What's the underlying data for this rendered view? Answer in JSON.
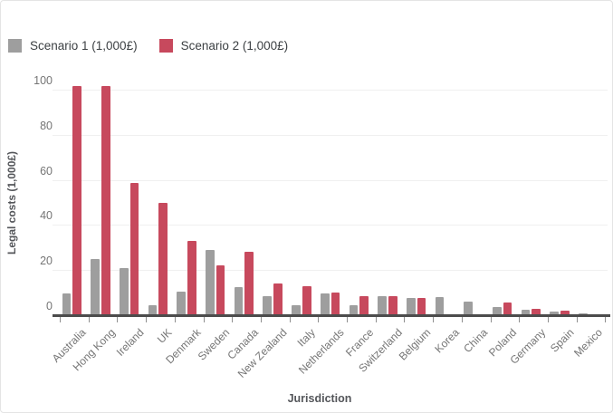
{
  "legend": {
    "items": [
      {
        "label": "Scenario 1 (1,000£)",
        "color": "#9e9e9e"
      },
      {
        "label": "Scenario 2 (1,000£)",
        "color": "#c7495d"
      }
    ],
    "position": "top-left"
  },
  "chart_data": {
    "type": "bar",
    "title": "",
    "categories": [
      "Australia",
      "Hong Kong",
      "Ireland",
      "UK",
      "Denmark",
      "Sweden",
      "Canada",
      "New Zealand",
      "Italy",
      "Netherlands",
      "France",
      "Switzerland",
      "Belgium",
      "Korea",
      "China",
      "Poland",
      "Germany",
      "Spain",
      "Mexico"
    ],
    "series": [
      {
        "name": "Scenario 1 (1,000£)",
        "color": "#9e9e9e",
        "values": [
          9.5,
          25,
          21,
          4.5,
          10.5,
          29,
          12.5,
          8.5,
          4.5,
          9.5,
          4.5,
          8.5,
          7.5,
          8,
          6,
          3.5,
          2.5,
          1.5,
          1
        ]
      },
      {
        "name": "Scenario 2 (1,000£)",
        "color": "#c7495d",
        "values": [
          101.5,
          101.5,
          58.5,
          50,
          33,
          22,
          28,
          14,
          13,
          10,
          8.5,
          8.5,
          7.5,
          0,
          0,
          5.5,
          3,
          2,
          0
        ]
      }
    ],
    "xlabel": "Jurisdiction",
    "ylabel": "Legal costs (1,000£)",
    "ylim": [
      0,
      100
    ],
    "yticks": [
      0,
      20,
      40,
      60,
      80,
      100
    ],
    "grid": true,
    "legend_position": "top-left",
    "x_label_rotation": -45
  },
  "colors": {
    "gridline": "#f0f0f0",
    "axis_line": "#4c4c4c",
    "tick_label": "#757575",
    "axis_title": "#54565a",
    "legend_text": "#3c4043",
    "background": "#ffffff"
  }
}
